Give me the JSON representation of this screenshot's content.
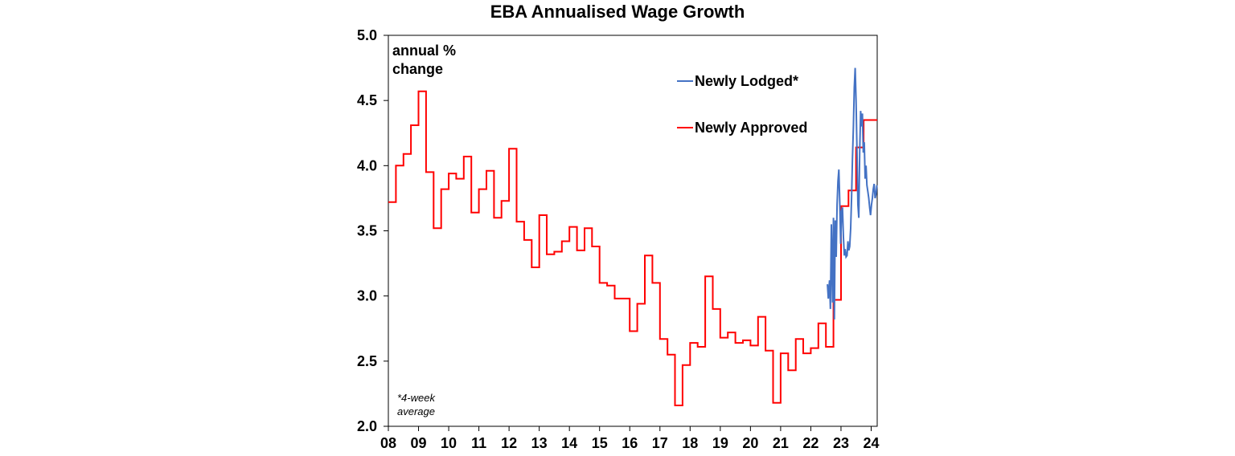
{
  "chart_data": {
    "type": "line",
    "title": "EBA Annualised Wage Growth",
    "ylabel_lines": [
      "annual %",
      "change"
    ],
    "note_lines": [
      "*4-week",
      "average"
    ],
    "ylim": [
      2.0,
      5.0
    ],
    "yticks": [
      2.0,
      2.5,
      3.0,
      3.5,
      4.0,
      4.5,
      5.0
    ],
    "ytick_labels": [
      "2.0",
      "2.5",
      "3.0",
      "3.5",
      "4.0",
      "4.5",
      "5.0"
    ],
    "xlim": [
      2008.0,
      2024.2
    ],
    "xticks": [
      2008,
      2009,
      2010,
      2011,
      2012,
      2013,
      2014,
      2015,
      2016,
      2017,
      2018,
      2019,
      2020,
      2021,
      2022,
      2023,
      2024
    ],
    "xtick_labels": [
      "08",
      "09",
      "10",
      "11",
      "12",
      "13",
      "14",
      "15",
      "16",
      "17",
      "18",
      "19",
      "20",
      "21",
      "22",
      "23",
      "24"
    ],
    "grid": false,
    "legend_position": "top-right",
    "series": [
      {
        "name": "Newly Lodged*",
        "color": "#4472C4",
        "step": false,
        "x": [
          2022.55,
          2022.58,
          2022.62,
          2022.65,
          2022.68,
          2022.72,
          2022.75,
          2022.78,
          2022.81,
          2022.84,
          2022.87,
          2022.9,
          2022.93,
          2022.96,
          2022.99,
          2023.02,
          2023.05,
          2023.08,
          2023.11,
          2023.14,
          2023.17,
          2023.2,
          2023.23,
          2023.26,
          2023.29,
          2023.32,
          2023.35,
          2023.38,
          2023.41,
          2023.44,
          2023.47,
          2023.5,
          2023.53,
          2023.56,
          2023.59,
          2023.62,
          2023.65,
          2023.68,
          2023.71,
          2023.74,
          2023.77,
          2023.8,
          2023.83,
          2023.86,
          2023.89,
          2023.92,
          2023.95,
          2023.98,
          2024.01,
          2024.04,
          2024.07,
          2024.1,
          2024.13,
          2024.16,
          2024.19
        ],
        "y": [
          3.09,
          2.98,
          3.12,
          2.9,
          3.55,
          2.95,
          3.6,
          2.82,
          3.58,
          3.3,
          3.7,
          3.88,
          3.97,
          3.7,
          3.4,
          3.65,
          3.68,
          3.45,
          3.31,
          3.36,
          3.3,
          3.31,
          3.42,
          3.35,
          3.38,
          3.52,
          3.75,
          4.05,
          4.3,
          4.6,
          4.75,
          4.5,
          4.1,
          3.7,
          3.6,
          4.1,
          4.42,
          4.3,
          4.4,
          4.1,
          4.18,
          3.9,
          4.0,
          3.85,
          3.8,
          3.75,
          3.68,
          3.62,
          3.7,
          3.75,
          3.82,
          3.86,
          3.75,
          3.78,
          3.85
        ]
      },
      {
        "name": "Newly Approved",
        "color": "#FF0000",
        "step": true,
        "x": [
          2008.0,
          2008.25,
          2008.5,
          2008.75,
          2009.0,
          2009.25,
          2009.5,
          2009.75,
          2010.0,
          2010.25,
          2010.5,
          2010.75,
          2011.0,
          2011.25,
          2011.5,
          2011.75,
          2012.0,
          2012.25,
          2012.5,
          2012.75,
          2013.0,
          2013.25,
          2013.5,
          2013.75,
          2014.0,
          2014.25,
          2014.5,
          2014.75,
          2015.0,
          2015.25,
          2015.5,
          2015.75,
          2016.0,
          2016.25,
          2016.5,
          2016.75,
          2017.0,
          2017.25,
          2017.5,
          2017.75,
          2018.0,
          2018.25,
          2018.5,
          2018.75,
          2019.0,
          2019.25,
          2019.5,
          2019.75,
          2020.0,
          2020.25,
          2020.5,
          2020.75,
          2021.0,
          2021.25,
          2021.5,
          2021.75,
          2022.0,
          2022.25,
          2022.5,
          2022.75,
          2023.0,
          2023.25,
          2023.5,
          2023.75,
          2024.0
        ],
        "y": [
          3.72,
          4.0,
          4.09,
          4.31,
          4.57,
          3.95,
          3.52,
          3.82,
          3.94,
          3.9,
          4.07,
          3.64,
          3.82,
          3.96,
          3.6,
          3.73,
          4.13,
          3.57,
          3.43,
          3.22,
          3.62,
          3.32,
          3.34,
          3.42,
          3.53,
          3.35,
          3.52,
          3.38,
          3.1,
          3.08,
          2.98,
          2.98,
          2.73,
          2.94,
          3.31,
          3.1,
          2.67,
          2.55,
          2.16,
          2.47,
          2.64,
          2.61,
          3.15,
          2.9,
          2.68,
          2.72,
          2.64,
          2.66,
          2.62,
          2.84,
          2.58,
          2.18,
          2.56,
          2.43,
          2.67,
          2.56,
          2.6,
          2.79,
          2.61,
          2.97,
          3.69,
          3.81,
          4.14,
          4.35,
          4.35
        ]
      }
    ]
  }
}
